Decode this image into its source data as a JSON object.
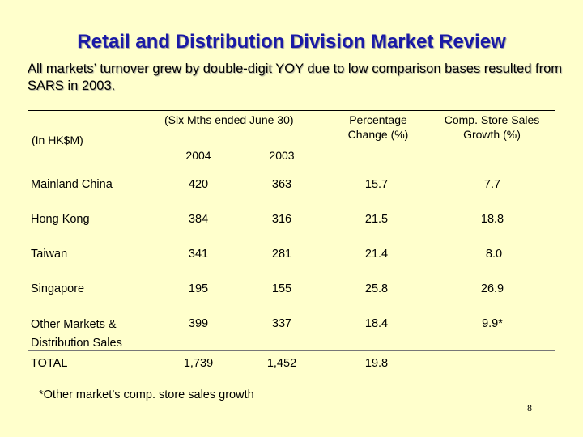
{
  "title": "Retail and Distribution Division Market Review",
  "subtitle": "All markets’ turnover grew by double-digit YOY due to low comparison bases resulted from SARS in 2003.",
  "table": {
    "unit_label": "(In HK$M)",
    "period_label": "(Six Mths ended June 30)",
    "year_2004": "2004",
    "year_2003": "2003",
    "pct_change_header": "Percentage Change (%)",
    "comp_store_header": "Comp. Store Sales Growth (%)",
    "rows": [
      {
        "market": "Mainland China",
        "v2004": "420",
        "v2003": "363",
        "pct": "15.7",
        "comp": "7.7"
      },
      {
        "market": "Hong Kong",
        "v2004": "384",
        "v2003": "316",
        "pct": "21.5",
        "comp": "18.8"
      },
      {
        "market": "Taiwan",
        "v2004": "341",
        "v2003": "281",
        "pct": "21.4",
        "comp": "8.0"
      },
      {
        "market": "Singapore",
        "v2004": "195",
        "v2003": "155",
        "pct": "25.8",
        "comp": "26.9"
      },
      {
        "market": "Other Markets & Distribution Sales",
        "v2004": "399",
        "v2003": "337",
        "pct": "18.4",
        "comp": "9.9*"
      },
      {
        "market": "TOTAL",
        "v2004": "1,739",
        "v2003": "1,452",
        "pct": "19.8",
        "comp": ""
      }
    ]
  },
  "footnote": "*Other market’s comp. store sales growth",
  "page_number": "8"
}
